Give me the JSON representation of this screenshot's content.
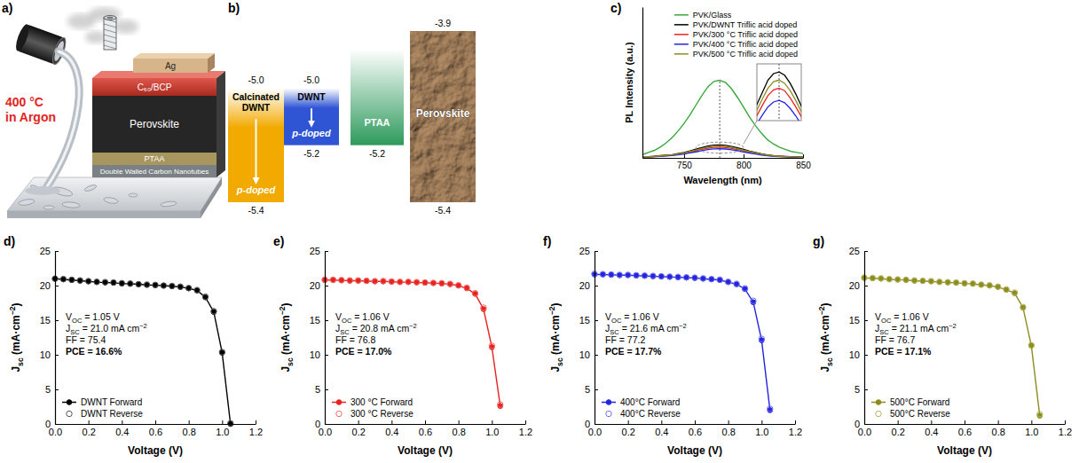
{
  "schematic": {
    "panel": "a)",
    "conditions": [
      "400 °C",
      "in Argon"
    ],
    "layers": [
      "Ag",
      "C₆₀/BCP",
      "Perovskite",
      "PTAA",
      "Double Walled Carbon Nanotubes"
    ]
  },
  "energy_diagram": {
    "panel": "b)",
    "columns": [
      {
        "name": "Calcinated DWNT",
        "note": "p-doped",
        "top": {
          "value": -5.0,
          "label": "-5.0"
        },
        "bottom": {
          "value": -5.4,
          "label": "-5.4"
        }
      },
      {
        "name": "DWNT",
        "note": "p-doped",
        "top": {
          "value": -5.0,
          "label": "-5.0"
        },
        "bottom": {
          "value": -5.2,
          "label": "-5.2"
        }
      },
      {
        "name": "PTAA",
        "bottom": {
          "value": -5.2,
          "label": "-5.2"
        }
      },
      {
        "name": "Perovskite",
        "top": {
          "value": -3.9,
          "label": "-3.9"
        },
        "bottom": {
          "value": -5.4,
          "label": "-5.4"
        }
      }
    ]
  },
  "chart_data": [
    {
      "panel": "c)",
      "type": "line",
      "xlabel": "Wavelength (nm)",
      "ylabel": "PL Intensity (a.u.)",
      "x": [
        715,
        720,
        725,
        730,
        735,
        740,
        745,
        750,
        755,
        760,
        765,
        770,
        775,
        780,
        785,
        790,
        795,
        800,
        805,
        810,
        815,
        820,
        825,
        830,
        835,
        840,
        845,
        850
      ],
      "xlim": [
        715,
        850
      ],
      "xticks": [
        750,
        800,
        850
      ],
      "ylim": [
        0,
        1.4
      ],
      "tick_labels": "x",
      "legend": "upper right",
      "reference_line": 780,
      "inset": {
        "xlim": [
          760,
          800
        ],
        "ylim": [
          0.06,
          0.13
        ]
      },
      "series": [
        {
          "name": "PVK/Glass",
          "color": "#38a83c",
          "values": [
            0.03,
            0.05,
            0.07,
            0.1,
            0.14,
            0.19,
            0.25,
            0.32,
            0.4,
            0.49,
            0.58,
            0.66,
            0.71,
            0.72,
            0.7,
            0.64,
            0.56,
            0.47,
            0.38,
            0.3,
            0.23,
            0.17,
            0.13,
            0.1,
            0.08,
            0.06,
            0.05,
            0.04
          ]
        },
        {
          "name": "PVK/DWNT Triflic acid doped",
          "color": "#000000",
          "values": [
            0.01,
            0.01,
            0.015,
            0.02,
            0.025,
            0.03,
            0.04,
            0.05,
            0.065,
            0.08,
            0.095,
            0.11,
            0.118,
            0.12,
            0.116,
            0.106,
            0.093,
            0.078,
            0.063,
            0.05,
            0.038,
            0.028,
            0.021,
            0.016,
            0.013,
            0.01,
            0.008,
            0.007
          ]
        },
        {
          "name": "PVK/300 °C Triflic acid doped",
          "color": "#e8231f",
          "values": [
            0.009,
            0.01,
            0.012,
            0.016,
            0.021,
            0.026,
            0.033,
            0.042,
            0.054,
            0.066,
            0.079,
            0.091,
            0.098,
            0.1,
            0.097,
            0.088,
            0.077,
            0.065,
            0.053,
            0.042,
            0.032,
            0.024,
            0.018,
            0.014,
            0.011,
            0.008,
            0.007,
            0.006
          ]
        },
        {
          "name": "PVK/400 °C Triflic acid doped",
          "color": "#2424e0",
          "values": [
            0.008,
            0.009,
            0.011,
            0.014,
            0.018,
            0.022,
            0.028,
            0.036,
            0.046,
            0.056,
            0.067,
            0.077,
            0.083,
            0.085,
            0.082,
            0.075,
            0.066,
            0.055,
            0.045,
            0.036,
            0.027,
            0.02,
            0.015,
            0.012,
            0.009,
            0.007,
            0.006,
            0.005
          ]
        },
        {
          "name": "PVK/500 °C Triflic acid doped",
          "color": "#8c8c1f",
          "values": [
            0.01,
            0.01,
            0.013,
            0.018,
            0.023,
            0.028,
            0.036,
            0.046,
            0.06,
            0.073,
            0.087,
            0.1,
            0.108,
            0.11,
            0.106,
            0.097,
            0.085,
            0.071,
            0.058,
            0.046,
            0.035,
            0.026,
            0.019,
            0.015,
            0.012,
            0.009,
            0.007,
            0.006
          ]
        }
      ]
    },
    {
      "panel": "d)",
      "type": "line",
      "xlabel": "Voltage (V)",
      "ylabel": [
        {
          "text": "J"
        },
        {
          "sub": "sc"
        },
        {
          "text": " (mA·cm"
        },
        {
          "sup": "−2"
        },
        {
          "text": ")"
        }
      ],
      "x": [
        0,
        0.05,
        0.1,
        0.15,
        0.2,
        0.25,
        0.3,
        0.35,
        0.4,
        0.45,
        0.5,
        0.55,
        0.6,
        0.65,
        0.7,
        0.75,
        0.8,
        0.85,
        0.9,
        0.95,
        1.0,
        1.05
      ],
      "xlim": [
        0,
        1.2
      ],
      "xticks": [
        {
          "value": 0,
          "label": "0.0"
        },
        0.2,
        0.4,
        0.6,
        0.8,
        {
          "value": 1,
          "label": "1.0"
        },
        1.2
      ],
      "ylim": [
        0,
        25
      ],
      "yticks": [
        0,
        5,
        10,
        15,
        20,
        25
      ],
      "legend": "lower left",
      "annotations": [
        [
          {
            "text": "V"
          },
          {
            "sub": "OC"
          },
          {
            "text": " = 1.05 V"
          }
        ],
        [
          {
            "text": "J"
          },
          {
            "sub": "SC"
          },
          {
            "text": " = 21.0 mA cm"
          },
          {
            "sup": "−2"
          }
        ],
        [
          {
            "text": "FF = 75.4"
          }
        ],
        [
          {
            "text": "PCE = 16.6%"
          }
        ]
      ],
      "series": [
        {
          "name": "DWNT Forward",
          "color": "#000000",
          "marker": "circle",
          "line_style": "solid",
          "values": [
            21.0,
            20.9,
            20.8,
            20.7,
            20.6,
            20.5,
            20.45,
            20.4,
            20.3,
            20.25,
            20.2,
            20.1,
            20.05,
            20.0,
            19.9,
            19.8,
            19.6,
            19.3,
            18.3,
            16.2,
            10.3,
            0.0
          ]
        },
        {
          "name": "DWNT Reverse",
          "color": "#555555",
          "marker": "open-circle",
          "line_style": "none",
          "values": [
            21.0,
            20.95,
            20.85,
            20.75,
            20.65,
            20.55,
            20.5,
            20.45,
            20.35,
            20.3,
            20.2,
            20.15,
            20.1,
            20.0,
            19.95,
            19.85,
            19.65,
            19.35,
            18.4,
            16.3,
            10.4,
            0.1
          ]
        }
      ]
    },
    {
      "panel": "e)",
      "type": "line",
      "xlabel": "Voltage (V)",
      "ylabel": [
        {
          "text": "J"
        },
        {
          "sub": "sc"
        },
        {
          "text": " (mA·cm"
        },
        {
          "sup": "−2"
        },
        {
          "text": ")"
        }
      ],
      "x": [
        0,
        0.05,
        0.1,
        0.15,
        0.2,
        0.25,
        0.3,
        0.35,
        0.4,
        0.45,
        0.5,
        0.55,
        0.6,
        0.65,
        0.7,
        0.75,
        0.8,
        0.85,
        0.9,
        0.95,
        1.0,
        1.05
      ],
      "xlim": [
        0,
        1.2
      ],
      "xticks": [
        {
          "value": 0,
          "label": "0.0"
        },
        0.2,
        0.4,
        0.6,
        0.8,
        {
          "value": 1,
          "label": "1.0"
        },
        1.2
      ],
      "ylim": [
        0,
        25
      ],
      "yticks": [
        0,
        5,
        10,
        15,
        20,
        25
      ],
      "legend": "lower left",
      "annotations": [
        [
          {
            "text": "V"
          },
          {
            "sub": "OC"
          },
          {
            "text": " = 1.06 V"
          }
        ],
        [
          {
            "text": "J"
          },
          {
            "sub": "SC"
          },
          {
            "text": " = 20.8 mA cm"
          },
          {
            "sup": "−2"
          }
        ],
        [
          {
            "text": "FF = 76.8"
          }
        ],
        [
          {
            "text": "PCE = 17.0%"
          }
        ]
      ],
      "series": [
        {
          "name": "300 °C Forward",
          "color": "#e8231f",
          "marker": "circle",
          "line_style": "solid",
          "values": [
            20.8,
            20.8,
            20.75,
            20.7,
            20.7,
            20.65,
            20.6,
            20.6,
            20.55,
            20.5,
            20.5,
            20.45,
            20.4,
            20.35,
            20.3,
            20.2,
            20.0,
            19.6,
            18.8,
            16.6,
            11.1,
            2.6
          ]
        },
        {
          "name": "300 °C Reverse",
          "color": "#f06a66",
          "marker": "open-circle",
          "line_style": "none",
          "values": [
            20.85,
            20.85,
            20.8,
            20.75,
            20.75,
            20.7,
            20.65,
            20.65,
            20.6,
            20.55,
            20.55,
            20.5,
            20.45,
            20.4,
            20.35,
            20.25,
            20.05,
            19.7,
            18.9,
            16.8,
            11.3,
            2.8
          ]
        }
      ]
    },
    {
      "panel": "f)",
      "type": "line",
      "xlabel": "Voltage (V)",
      "ylabel": [
        {
          "text": "J"
        },
        {
          "sub": "sc"
        },
        {
          "text": " (mA·cm"
        },
        {
          "sup": "−2"
        },
        {
          "text": ")"
        }
      ],
      "x": [
        0,
        0.05,
        0.1,
        0.15,
        0.2,
        0.25,
        0.3,
        0.35,
        0.4,
        0.45,
        0.5,
        0.55,
        0.6,
        0.65,
        0.7,
        0.75,
        0.8,
        0.85,
        0.9,
        0.95,
        1.0,
        1.05
      ],
      "xlim": [
        0,
        1.2
      ],
      "xticks": [
        {
          "value": 0,
          "label": "0.0"
        },
        0.2,
        0.4,
        0.6,
        0.8,
        {
          "value": 1,
          "label": "1.0"
        },
        1.2
      ],
      "ylim": [
        0,
        25
      ],
      "yticks": [
        0,
        5,
        10,
        15,
        20,
        25
      ],
      "legend": "lower left",
      "annotations": [
        [
          {
            "text": "V"
          },
          {
            "sub": "OC"
          },
          {
            "text": " = 1.06 V"
          }
        ],
        [
          {
            "text": "J"
          },
          {
            "sub": "SC"
          },
          {
            "text": " = 21.6 mA cm"
          },
          {
            "sup": "−2"
          }
        ],
        [
          {
            "text": "FF = 77.2"
          }
        ],
        [
          {
            "text": "PCE = 17.7%"
          }
        ]
      ],
      "series": [
        {
          "name": "400°C Forward",
          "color": "#2424e0",
          "marker": "circle",
          "line_style": "solid",
          "values": [
            21.6,
            21.6,
            21.55,
            21.5,
            21.5,
            21.45,
            21.4,
            21.35,
            21.3,
            21.25,
            21.2,
            21.15,
            21.1,
            21.0,
            20.9,
            20.8,
            20.5,
            20.2,
            19.5,
            17.6,
            12.1,
            2.0
          ]
        },
        {
          "name": "400°C Reverse",
          "color": "#6f6ff0",
          "marker": "open-circle",
          "line_style": "none",
          "values": [
            21.7,
            21.65,
            21.6,
            21.55,
            21.55,
            21.5,
            21.45,
            21.4,
            21.35,
            21.3,
            21.25,
            21.2,
            21.15,
            21.05,
            20.95,
            20.85,
            20.55,
            20.25,
            19.6,
            17.8,
            12.3,
            2.2
          ]
        }
      ]
    },
    {
      "panel": "g)",
      "type": "line",
      "xlabel": "Voltage (V)",
      "ylabel": [
        {
          "text": "J"
        },
        {
          "sub": "sc"
        },
        {
          "text": " (mA·cm"
        },
        {
          "sup": "−2"
        },
        {
          "text": ")"
        }
      ],
      "x": [
        0,
        0.05,
        0.1,
        0.15,
        0.2,
        0.25,
        0.3,
        0.35,
        0.4,
        0.45,
        0.5,
        0.55,
        0.6,
        0.65,
        0.7,
        0.75,
        0.8,
        0.85,
        0.9,
        0.95,
        1.0,
        1.05
      ],
      "xlim": [
        0,
        1.2
      ],
      "xticks": [
        {
          "value": 0,
          "label": "0.0"
        },
        0.2,
        0.4,
        0.6,
        0.8,
        {
          "value": 1,
          "label": "1.0"
        },
        1.2
      ],
      "ylim": [
        0,
        25
      ],
      "yticks": [
        0,
        5,
        10,
        15,
        20,
        25
      ],
      "legend": "lower left",
      "annotations": [
        [
          {
            "text": "V"
          },
          {
            "sub": "OC"
          },
          {
            "text": " = 1.06 V"
          }
        ],
        [
          {
            "text": "J"
          },
          {
            "sub": "SC"
          },
          {
            "text": " = 21.1 mA cm"
          },
          {
            "sup": "−2"
          }
        ],
        [
          {
            "text": "FF = 76.7"
          }
        ],
        [
          {
            "text": "PCE = 17.1%"
          }
        ]
      ],
      "series": [
        {
          "name": "500°C Forward",
          "color": "#8c8c1f",
          "marker": "circle",
          "line_style": "solid",
          "values": [
            21.1,
            21.05,
            21.0,
            20.9,
            20.85,
            20.8,
            20.7,
            20.65,
            20.6,
            20.5,
            20.45,
            20.4,
            20.3,
            20.25,
            20.1,
            20.0,
            19.8,
            19.4,
            18.9,
            16.8,
            11.3,
            1.2
          ]
        },
        {
          "name": "500°C Reverse",
          "color": "#b5b560",
          "marker": "open-circle",
          "line_style": "none",
          "values": [
            21.15,
            21.1,
            21.05,
            20.95,
            20.9,
            20.85,
            20.75,
            20.7,
            20.65,
            20.55,
            20.5,
            20.45,
            20.35,
            20.3,
            20.15,
            20.05,
            19.85,
            19.45,
            19.0,
            16.9,
            11.4,
            1.4
          ]
        }
      ]
    }
  ]
}
